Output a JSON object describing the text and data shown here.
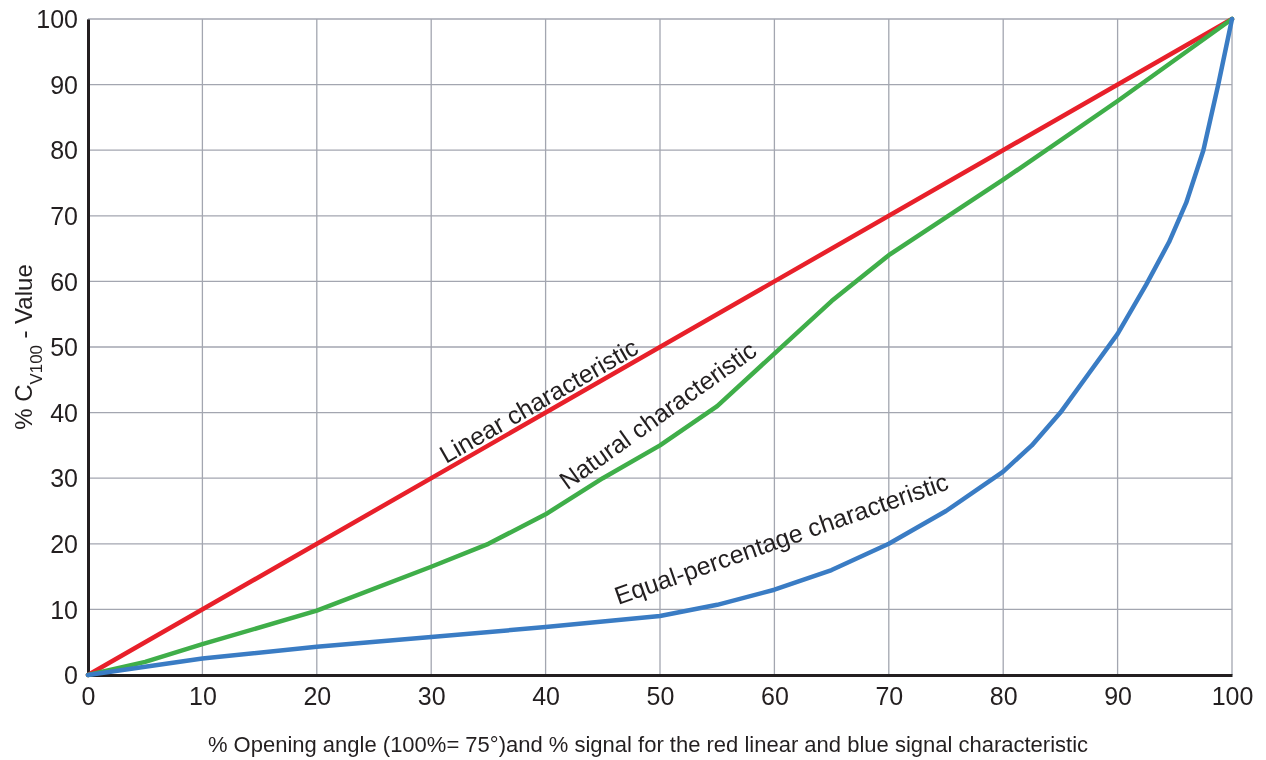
{
  "chart_data": {
    "type": "line",
    "xlabel": "% Opening angle (100%= 75°)and % signal for the red linear and blue signal characteristic",
    "ylabel": "% C$_{V100}$ - Value",
    "xlim": [
      0,
      100
    ],
    "ylim": [
      0,
      100
    ],
    "xticks": [
      0,
      10,
      20,
      30,
      40,
      50,
      60,
      70,
      80,
      90,
      100
    ],
    "yticks": [
      0,
      10,
      20,
      30,
      40,
      50,
      60,
      70,
      80,
      90,
      100
    ],
    "grid": true,
    "legend": false,
    "marker": "none",
    "line_style": "solid",
    "series": [
      {
        "name": "Linear characteristic",
        "color": "#e8202a",
        "x": [
          0,
          100
        ],
        "values": [
          0,
          100
        ]
      },
      {
        "name": "Natural characteristic",
        "color": "#3fae49",
        "x": [
          0,
          5,
          10,
          20,
          30,
          35,
          40,
          45,
          50,
          55,
          60,
          65,
          70,
          80,
          90,
          100
        ],
        "values": [
          0,
          2,
          4.7,
          9.8,
          16.5,
          20,
          24.5,
          30,
          35,
          41,
          49,
          57,
          64,
          75.5,
          87.5,
          100
        ]
      },
      {
        "name": "Equal-percentage characteristic",
        "color": "#3a7cc4",
        "x": [
          0,
          10,
          20,
          30,
          40,
          50,
          55,
          60,
          65,
          70,
          75,
          80,
          82.5,
          85,
          87.5,
          90,
          92.5,
          94.5,
          96,
          97.5,
          98.8,
          100
        ],
        "values": [
          0,
          2.5,
          4.3,
          5.8,
          7.3,
          9,
          10.7,
          13,
          16,
          20,
          25,
          31,
          35,
          40,
          46,
          52,
          59.5,
          66,
          72,
          80,
          90,
          100
        ]
      }
    ]
  }
}
